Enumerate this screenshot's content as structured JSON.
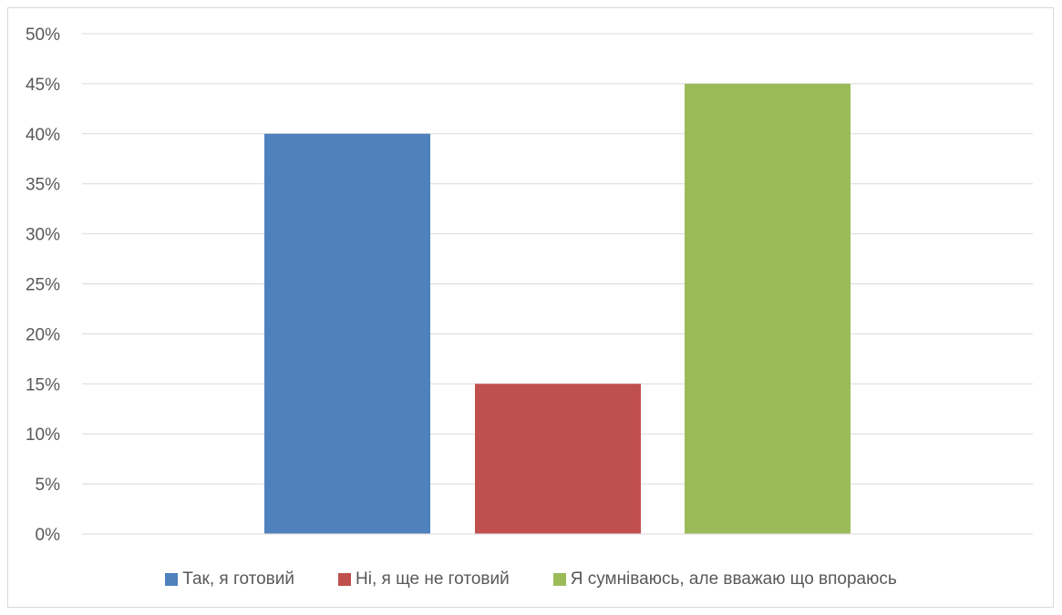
{
  "chart_data": {
    "type": "bar",
    "title": "",
    "xlabel": "",
    "ylabel": "",
    "ylim": [
      0,
      0.5
    ],
    "y_ticks": [
      "0%",
      "5%",
      "10%",
      "15%",
      "20%",
      "25%",
      "30%",
      "35%",
      "40%",
      "45%",
      "50%"
    ],
    "grid": true,
    "legend_position": "bottom",
    "series": [
      {
        "name": "Так, я готовий",
        "value": 0.4,
        "color": "#4F81BD"
      },
      {
        "name": "Ні, я ще не готовий",
        "value": 0.15,
        "color": "#C0504D"
      },
      {
        "name": "Я сумніваюсь, але вважаю що впораюсь",
        "value": 0.45,
        "color": "#9BBB59"
      }
    ]
  }
}
